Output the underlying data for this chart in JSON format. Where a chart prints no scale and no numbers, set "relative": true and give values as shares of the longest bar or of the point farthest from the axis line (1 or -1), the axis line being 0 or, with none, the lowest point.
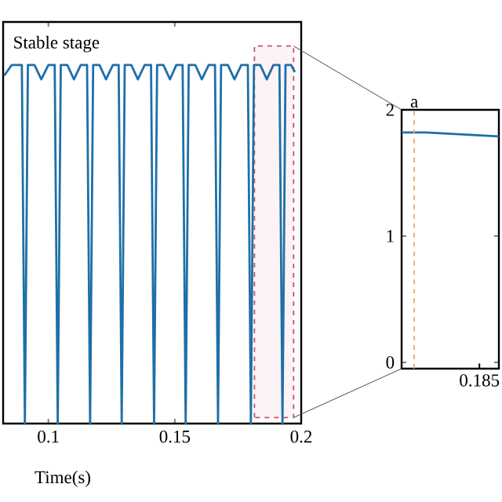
{
  "chart_data": [
    {
      "type": "line",
      "relative": true,
      "xlabel": "Time(s)",
      "annotations": [
        "Stable stage"
      ],
      "xlim": [
        0.0821,
        0.2
      ],
      "xticks": [
        0.1,
        0.15,
        0.2
      ],
      "bands": [
        {
          "axis": "x",
          "from": 0.1815,
          "to": 0.197,
          "color": "#c8506a"
        }
      ],
      "series": [
        {
          "color": "#1f6fa8",
          "x": [
            0.0825,
            0.0855,
            0.0895,
            0.0907,
            0.0919,
            0.0945,
            0.0972,
            0.1,
            0.1025,
            0.1037,
            0.1049,
            0.1075,
            0.1101,
            0.1128,
            0.1153,
            0.1165,
            0.1177,
            0.1202,
            0.1228,
            0.1255,
            0.1278,
            0.129,
            0.1302,
            0.1328,
            0.1354,
            0.1381,
            0.1406,
            0.1418,
            0.143,
            0.1455,
            0.1481,
            0.1506,
            0.1531,
            0.1543,
            0.1555,
            0.1581,
            0.1607,
            0.1634,
            0.1659,
            0.1671,
            0.1683,
            0.171,
            0.1736,
            0.1763,
            0.1789,
            0.1801,
            0.1813,
            0.1838,
            0.1864,
            0.189,
            0.1914,
            0.1926,
            0.1938,
            0.196,
            0.1975
          ],
          "values": [
            0.97,
            1,
            1,
            0,
            1,
            1,
            0.96,
            1,
            1,
            0,
            1,
            1,
            0.96,
            1,
            1,
            0,
            1,
            1,
            0.96,
            1,
            1,
            0,
            1,
            1,
            0.96,
            1,
            1,
            0,
            1,
            1,
            0.96,
            1,
            1,
            0,
            1,
            1,
            0.96,
            1,
            1,
            0,
            1,
            1,
            0.96,
            1,
            1,
            0,
            1,
            1,
            0.96,
            1,
            1,
            0,
            1,
            1,
            0.98
          ]
        }
      ]
    },
    {
      "type": "line",
      "categories": [
        null,
        null,
        null,
        null,
        null
      ],
      "ylim": [
        -0.05,
        2
      ],
      "yticks": [
        0,
        1,
        2
      ],
      "annotations": [
        "a",
        "0.185"
      ],
      "series": [
        {
          "color": "#1f6fa8",
          "values": [
            1.82,
            1.82,
            1.81,
            1.8,
            1.79
          ]
        }
      ]
    }
  ]
}
